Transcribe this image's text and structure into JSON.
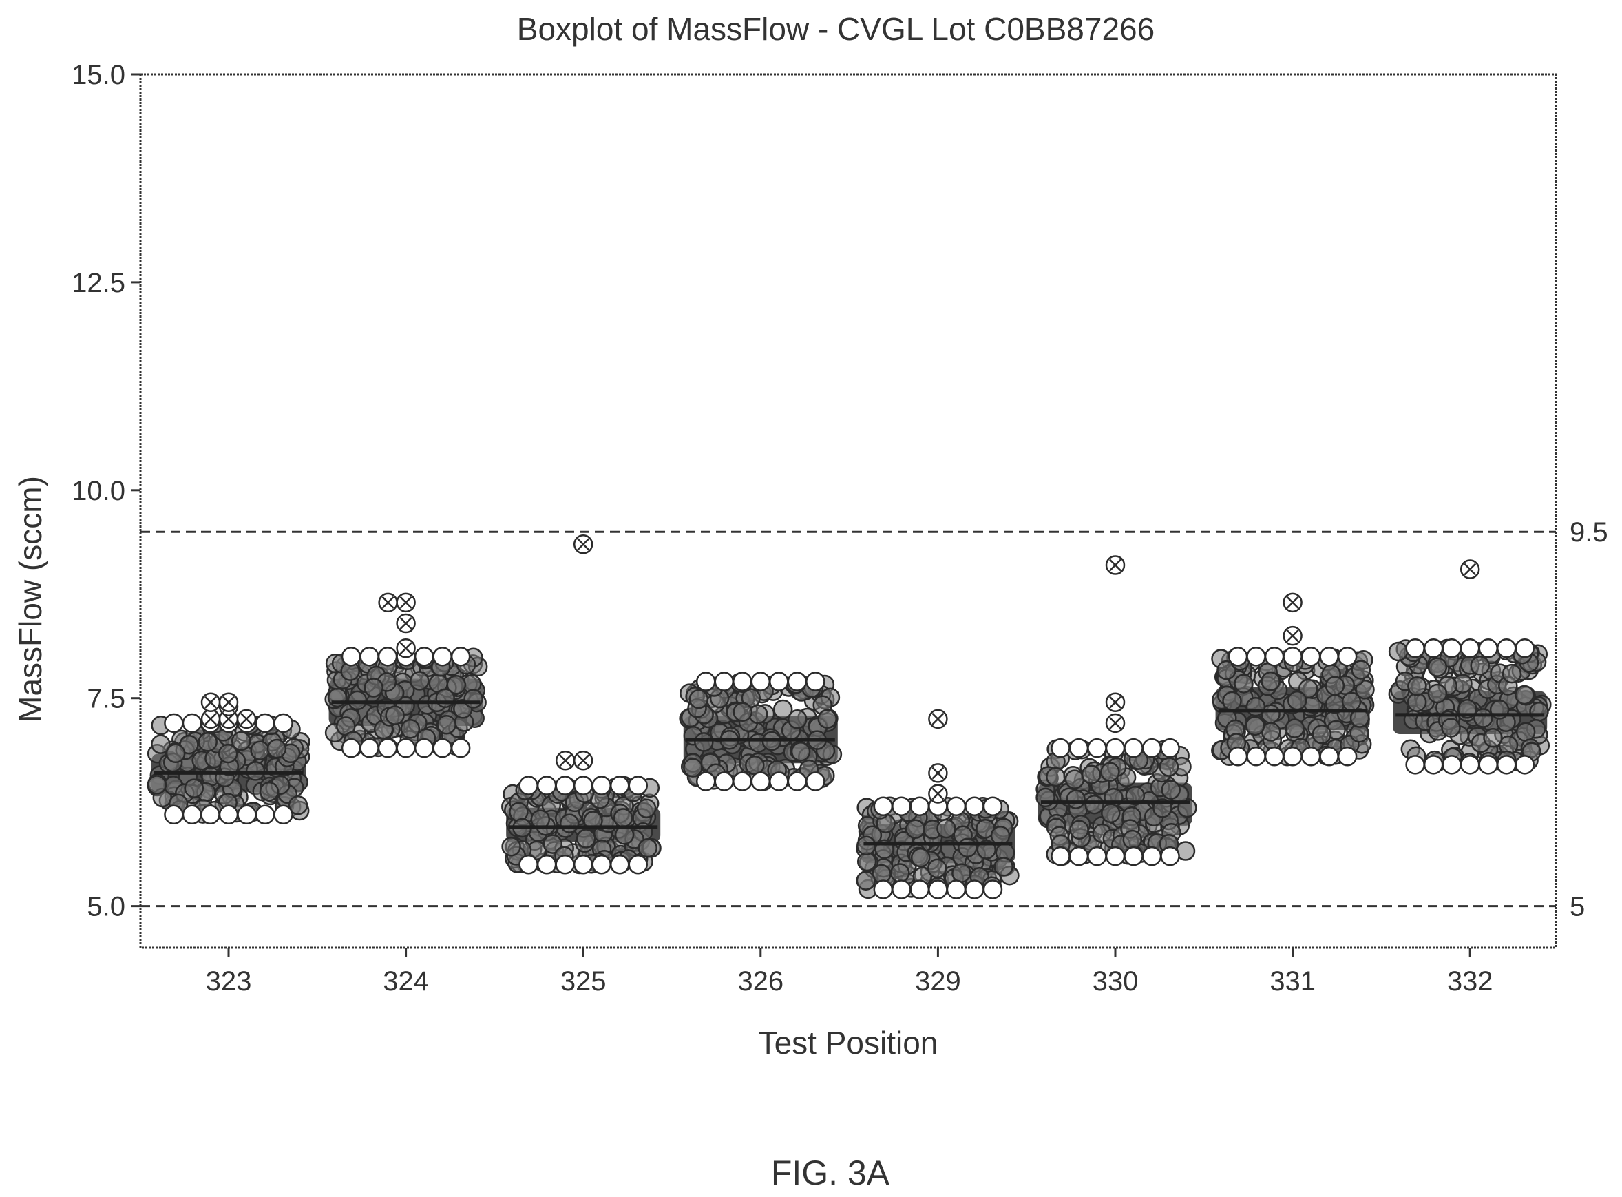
{
  "figure_label": "FIG. 3A",
  "chart_data": {
    "type": "scatter",
    "subtype": "boxplot-with-jittered-points",
    "title": "Boxplot of MassFlow - CVGL Lot C0BB87266",
    "xlabel": "Test Position",
    "ylabel": "MassFlow (sccm)",
    "ylim": [
      4.5,
      15.0
    ],
    "yticks": [
      5.0,
      7.5,
      10.0,
      12.5,
      15.0
    ],
    "ytick_labels": [
      "5.0",
      "7.5",
      "10.0",
      "12.5",
      "15.0"
    ],
    "categories": [
      "323",
      "324",
      "325",
      "326",
      "329",
      "330",
      "331",
      "332"
    ],
    "reference_lines": [
      {
        "value": 9.5,
        "label": "9.5"
      },
      {
        "value": 5.0,
        "label": "5"
      }
    ],
    "groups": [
      {
        "category": "323",
        "min": 6.1,
        "q1": 6.4,
        "median": 6.6,
        "q3": 6.8,
        "max": 7.0,
        "spread_low": 6.1,
        "spread_high": 7.2,
        "outliers": [
          7.25,
          7.25,
          7.25,
          7.4,
          7.45,
          7.45
        ]
      },
      {
        "category": "324",
        "min": 6.9,
        "q1": 7.2,
        "median": 7.45,
        "q3": 7.7,
        "max": 8.0,
        "spread_low": 6.9,
        "spread_high": 8.0,
        "outliers": [
          8.1,
          8.4,
          8.65,
          8.65
        ]
      },
      {
        "category": "325",
        "min": 5.5,
        "q1": 5.8,
        "median": 5.95,
        "q3": 6.15,
        "max": 6.45,
        "spread_low": 5.5,
        "spread_high": 6.45,
        "outliers": [
          6.75,
          6.75,
          9.35
        ]
      },
      {
        "category": "326",
        "min": 6.5,
        "q1": 6.75,
        "median": 7.0,
        "q3": 7.25,
        "max": 7.6,
        "spread_low": 6.5,
        "spread_high": 7.7,
        "outliers": []
      },
      {
        "category": "329",
        "min": 5.2,
        "q1": 5.55,
        "median": 5.75,
        "q3": 5.95,
        "max": 6.2,
        "spread_low": 5.2,
        "spread_high": 6.2,
        "outliers": [
          6.35,
          6.6,
          7.25
        ]
      },
      {
        "category": "330",
        "min": 5.6,
        "q1": 6.0,
        "median": 6.25,
        "q3": 6.45,
        "max": 6.65,
        "spread_low": 5.6,
        "spread_high": 6.9,
        "outliers": [
          7.2,
          7.45,
          9.1
        ]
      },
      {
        "category": "331",
        "min": 6.8,
        "q1": 7.15,
        "median": 7.35,
        "q3": 7.6,
        "max": 8.0,
        "spread_low": 6.8,
        "spread_high": 8.0,
        "outliers": [
          8.25,
          8.65
        ]
      },
      {
        "category": "332",
        "min": 6.7,
        "q1": 7.1,
        "median": 7.3,
        "q3": 7.55,
        "max": 8.1,
        "spread_low": 6.7,
        "spread_high": 8.1,
        "outliers": [
          9.05
        ]
      }
    ],
    "grid": false,
    "legend": "none",
    "colors": {
      "point_stroke": "#2b2b2b",
      "cluster_fill": "#4a4a4a",
      "frame": "#333333",
      "reference_line": "#333333"
    }
  }
}
